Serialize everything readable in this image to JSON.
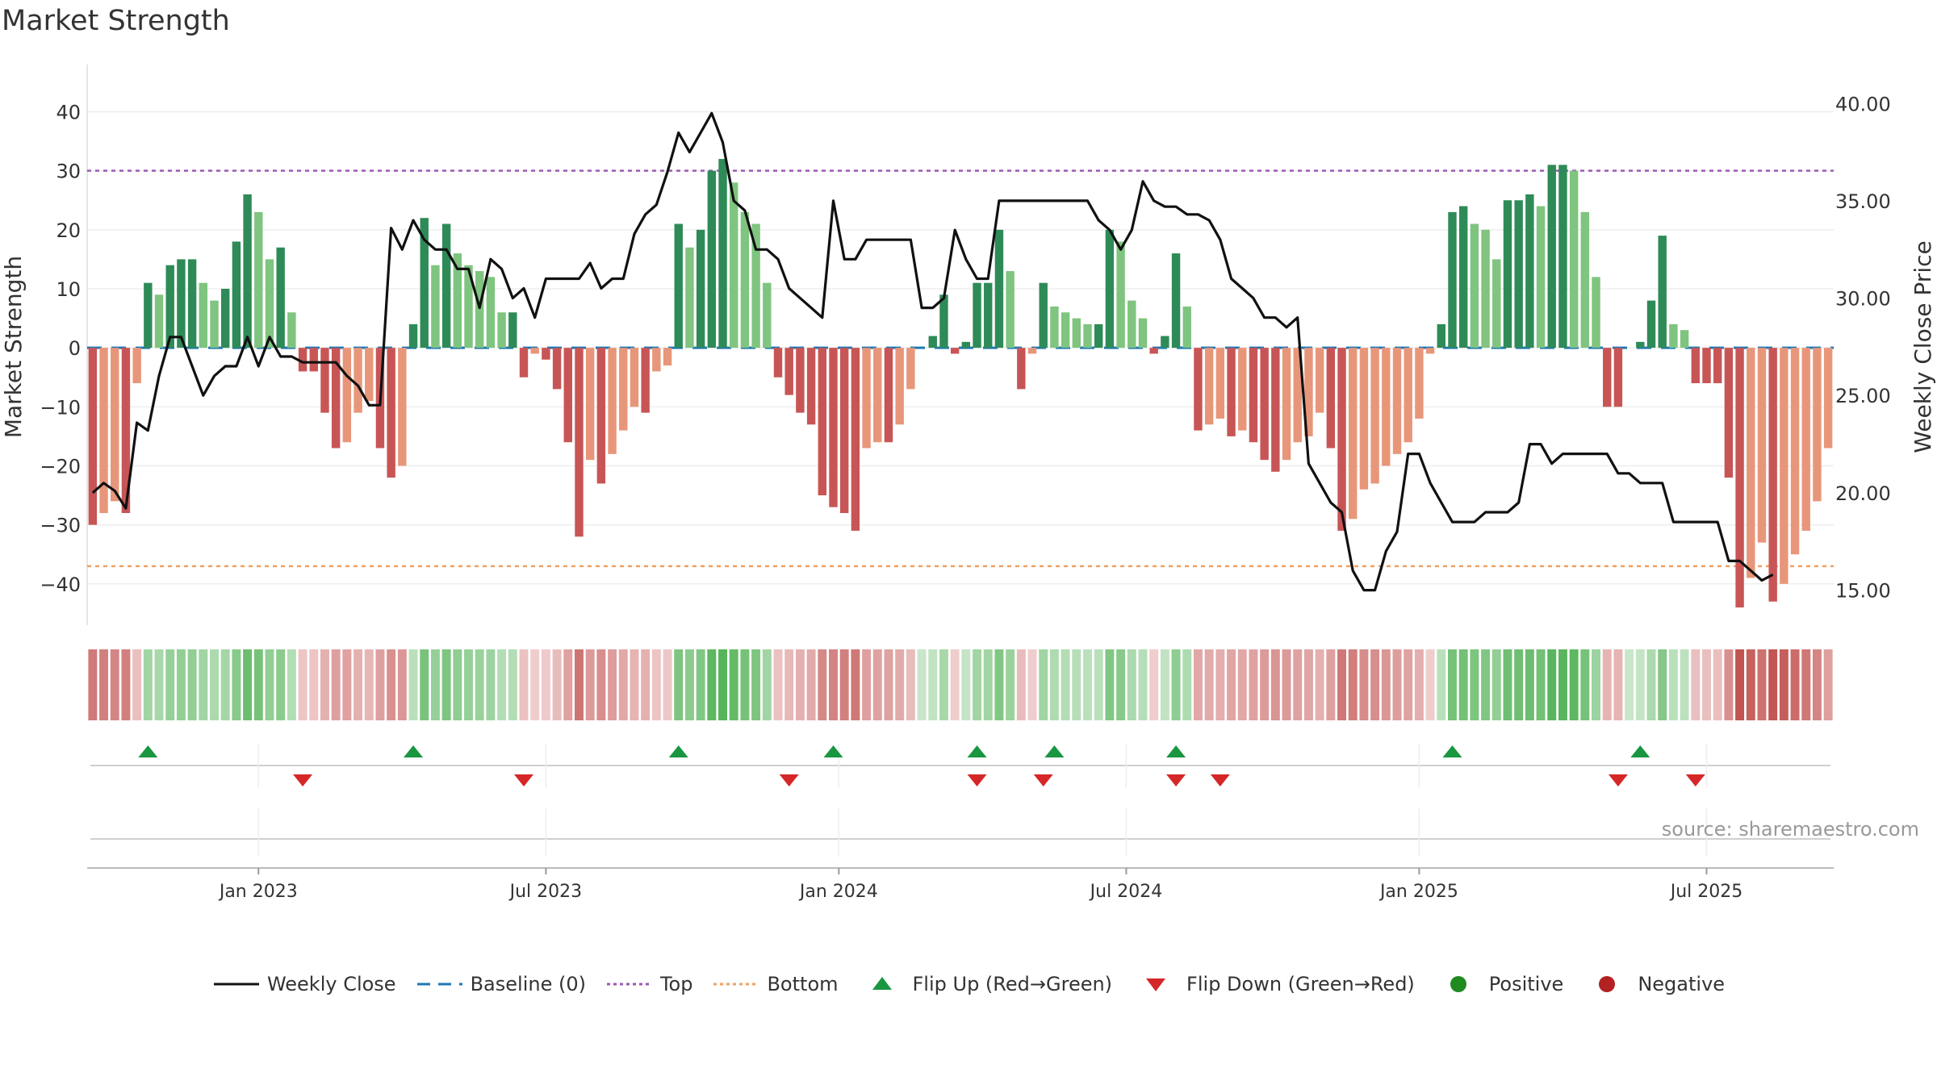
{
  "title": "Market Strength",
  "source": "source: sharemaestro.com",
  "colors": {
    "close": "#111111",
    "baseline": "#1f77b4",
    "top": "#9b59b6",
    "bottom": "#f0a060",
    "pos_strong": "#2e8b57",
    "pos_light": "#7fc47f",
    "neg_strong": "#c85555",
    "neg_light": "#e8967a",
    "flip_up": "#1a9641",
    "flip_down": "#d62728",
    "positive": "#1f8a1f",
    "negative": "#b22222"
  },
  "chart_data": {
    "type": "bar",
    "title": "Market Strength",
    "ylabel": "Market Strength",
    "y2label": "Weekly Close Price",
    "ylim": [
      -47,
      48
    ],
    "y2lim": [
      13.2,
      42.0
    ],
    "y_ticks": [
      40,
      30,
      20,
      10,
      0,
      -10,
      -20,
      -30,
      -40
    ],
    "y2_ticks": [
      "40.00",
      "35.00",
      "30.00",
      "25.00",
      "20.00",
      "15.00"
    ],
    "x_ticks": [
      {
        "label": "Jan 2023",
        "week": 15
      },
      {
        "label": "Jul 2023",
        "week": 41
      },
      {
        "label": "Jan 2024",
        "week": 67.5
      },
      {
        "label": "Jul 2024",
        "week": 93.5
      },
      {
        "label": "Jan 2025",
        "week": 120
      },
      {
        "label": "Jul 2025",
        "week": 146
      }
    ],
    "top_level": 30,
    "bottom_level": -37,
    "strength": [
      -30,
      -28,
      -26,
      -28,
      -6,
      11,
      9,
      14,
      15,
      15,
      11,
      8,
      10,
      18,
      26,
      23,
      15,
      17,
      6,
      -4,
      -4,
      -11,
      -17,
      -16,
      -11,
      -9,
      -17,
      -22,
      -20,
      4,
      22,
      14,
      21,
      16,
      14,
      13,
      12,
      6,
      6,
      -5,
      -1,
      -2,
      -7,
      -16,
      -32,
      -19,
      -23,
      -18,
      -14,
      -10,
      -11,
      -4,
      -3,
      21,
      17,
      20,
      30,
      32,
      28,
      23,
      21,
      11,
      -5,
      -8,
      -11,
      -13,
      -25,
      -27,
      -28,
      -31,
      -17,
      -16,
      -16,
      -13,
      -7,
      0,
      2,
      9,
      -1,
      1,
      11,
      11,
      20,
      13,
      -7,
      -1,
      11,
      7,
      6,
      5,
      4,
      4,
      20,
      18,
      8,
      5,
      -1,
      2,
      16,
      7,
      -14,
      -13,
      -12,
      -15,
      -14,
      -16,
      -19,
      -21,
      -19,
      -16,
      -15,
      -11,
      -17,
      -31,
      -29,
      -24,
      -23,
      -20,
      -18,
      -16,
      -12,
      -1,
      4,
      23,
      24,
      21,
      20,
      15,
      25,
      25,
      26,
      24,
      31,
      31,
      30,
      23,
      12,
      -10,
      -10,
      0,
      1,
      8,
      19,
      4,
      3,
      -6,
      -6,
      -6,
      -22,
      -44,
      -39,
      -33,
      -43,
      -40,
      -35,
      -31,
      -26,
      -17
    ],
    "weekly_close": [
      20.0,
      20.5,
      20.1,
      19.2,
      23.6,
      23.2,
      26.0,
      28.0,
      28.0,
      26.5,
      25.0,
      26.0,
      26.5,
      26.5,
      28.0,
      26.5,
      28.0,
      27.0,
      27.0,
      26.7,
      26.7,
      26.7,
      26.7,
      26.0,
      25.5,
      24.5,
      24.5,
      33.6,
      32.5,
      34.0,
      33.0,
      32.5,
      32.5,
      31.5,
      31.5,
      29.5,
      32.0,
      31.5,
      30.0,
      30.5,
      29.0,
      31.0,
      31.0,
      31.0,
      31.0,
      31.8,
      30.5,
      31.0,
      31.0,
      33.3,
      34.3,
      34.8,
      36.5,
      38.5,
      37.5,
      38.5,
      39.5,
      38.0,
      35.0,
      34.5,
      32.5,
      32.5,
      32.0,
      30.5,
      30.0,
      29.5,
      29.0,
      35.0,
      32.0,
      32.0,
      33.0,
      33.0,
      33.0,
      33.0,
      33.0,
      29.5,
      29.5,
      30.0,
      33.5,
      32.0,
      31.0,
      31.0,
      35.0,
      35.0,
      35.0,
      35.0,
      35.0,
      35.0,
      35.0,
      35.0,
      35.0,
      34.0,
      33.5,
      32.5,
      33.5,
      36.0,
      35.0,
      34.7,
      34.7,
      34.3,
      34.3,
      34.0,
      33.0,
      31.0,
      30.5,
      30.0,
      29.0,
      29.0,
      28.5,
      29.0,
      21.5,
      20.5,
      19.5,
      19.0,
      16.0,
      15.0,
      15.0,
      17.0,
      18.0,
      22.0,
      22.0,
      20.5,
      19.5,
      18.5,
      18.5,
      18.5,
      19.0,
      19.0,
      19.0,
      19.5,
      22.5,
      22.5,
      21.5,
      22.0,
      22.0,
      22.0,
      22.0,
      22.0,
      21.0,
      21.0,
      20.5,
      20.5,
      20.5,
      18.5,
      18.5,
      18.5,
      18.5,
      18.5,
      16.5,
      16.5,
      16.0,
      15.5,
      15.8
    ],
    "flip_up_weeks": [
      5,
      29,
      53,
      67,
      80,
      87,
      98,
      123,
      140
    ],
    "flip_down_weeks": [
      19,
      39,
      63,
      80,
      86,
      98,
      102,
      138,
      145
    ],
    "series": [
      {
        "name": "Weekly Close"
      },
      {
        "name": "Baseline (0)"
      },
      {
        "name": "Top"
      },
      {
        "name": "Bottom"
      },
      {
        "name": "Flip Up (Red→Green)"
      },
      {
        "name": "Flip Down (Green→Red)"
      },
      {
        "name": "Positive"
      },
      {
        "name": "Negative"
      }
    ]
  }
}
